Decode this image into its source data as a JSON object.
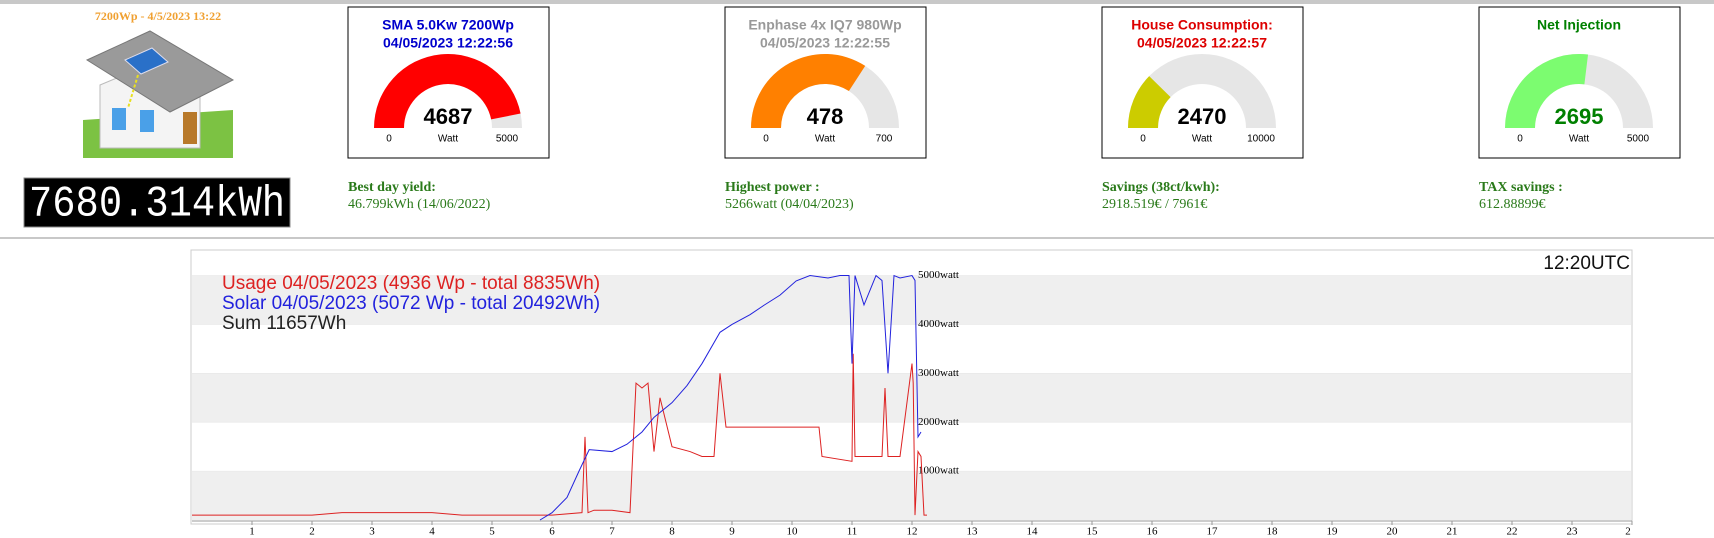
{
  "header": {
    "summary": "7200Wp - 4/5/2023 13:22",
    "counter": "7680.314kWh"
  },
  "gauges": [
    {
      "title": "SMA 5.0Kw 7200Wp",
      "time": "04/05/2023 12:22:56",
      "value": 4687,
      "min": 0,
      "max": 5000,
      "unit": "Watt",
      "color": "#ff0000",
      "title_color": "#0000cc",
      "value_color": "#000000"
    },
    {
      "title": "Enphase 4x IQ7 980Wp",
      "time": "04/05/2023 12:22:55",
      "value": 478,
      "min": 0,
      "max": 700,
      "unit": "Watt",
      "color": "#ff8000",
      "title_color": "#999999",
      "value_color": "#000000"
    },
    {
      "title": "House Consumption:",
      "time": "04/05/2023 12:22:57",
      "value": 2470,
      "min": 0,
      "max": 10000,
      "unit": "Watt",
      "color": "#cccc00",
      "title_color": "#dd0000",
      "value_color": "#000000"
    },
    {
      "title": "Net Injection",
      "value": 2695,
      "min": 0,
      "max": 5000,
      "unit": "Watt",
      "color": "#7cfc70",
      "title_color": "#008000",
      "value_color": "#008000"
    }
  ],
  "stats": [
    {
      "label": "Best day yield:",
      "value": "46.799kWh (14/06/2022)"
    },
    {
      "label": "Highest power :",
      "value": "5266watt (04/04/2023)"
    },
    {
      "label": "Savings (38ct/kwh):",
      "value": "2918.519€ / 7961€"
    },
    {
      "label": "TAX savings :",
      "value": "612.88899€"
    }
  ],
  "chart": {
    "type": "line",
    "corner_label": "12:20UTC",
    "sum_label": "Sum 11657Wh",
    "xlim": [
      0,
      24
    ],
    "ylim": [
      0,
      5400
    ],
    "xticks": [
      1,
      2,
      3,
      4,
      5,
      6,
      7,
      8,
      9,
      10,
      11,
      12,
      13,
      14,
      15,
      16,
      17,
      18,
      19,
      20,
      21,
      22,
      23,
      {
        "value": 24,
        "label": "2"
      }
    ],
    "yticks": [
      {
        "value": 1000,
        "label": "1000watt"
      },
      {
        "value": 2000,
        "label": "2000watt"
      },
      {
        "value": 3000,
        "label": "3000watt"
      },
      {
        "value": 4000,
        "label": "4000watt"
      },
      {
        "value": 5000,
        "label": "5000watt"
      }
    ],
    "series": [
      {
        "name": "Usage 04/05/2023 (4936 Wp - total 8835Wh)",
        "color": "#dd2222",
        "x": [
          0,
          1,
          2,
          2.5,
          3,
          4,
          4.5,
          5,
          5.5,
          6,
          6.5,
          6.55,
          6.6,
          6.7,
          7,
          7.3,
          7.4,
          7.5,
          7.6,
          7.7,
          7.8,
          8,
          8.3,
          8.5,
          8.7,
          8.8,
          8.9,
          9,
          9.5,
          10,
          10.4,
          10.45,
          10.5,
          11,
          11.02,
          11.05,
          11.1,
          11.3,
          11.5,
          11.55,
          11.6,
          11.8,
          12,
          12.02,
          12.05,
          12.1,
          12.15,
          12.2,
          12.25
        ],
        "values": [
          100,
          100,
          100,
          150,
          150,
          150,
          100,
          100,
          100,
          100,
          150,
          1700,
          150,
          200,
          200,
          150,
          2800,
          2700,
          2800,
          1400,
          2500,
          1500,
          1400,
          1300,
          1300,
          3000,
          1900,
          1900,
          1900,
          1900,
          1900,
          1900,
          1300,
          1200,
          3400,
          1300,
          1300,
          1300,
          1300,
          2700,
          1300,
          1300,
          3200,
          2800,
          100,
          1400,
          1300,
          100,
          100
        ]
      },
      {
        "name": "Solar 04/05/2023 (5072 Wp - total 20492Wh)",
        "color": "#2222dd",
        "x": [
          5.8,
          6,
          6.25,
          6.45,
          6.62,
          7,
          7.25,
          7.5,
          7.7,
          8,
          8.25,
          8.5,
          8.8,
          9,
          9.3,
          9.53,
          9.8,
          10.07,
          10.3,
          10.6,
          10.8,
          10.95,
          11,
          11.05,
          11.2,
          11.4,
          11.5,
          11.6,
          11.7,
          11.8,
          12,
          12.05,
          12.1,
          12.15
        ],
        "values": [
          0,
          150,
          460,
          1000,
          1440,
          1400,
          1550,
          1800,
          2100,
          2400,
          2750,
          3200,
          3840,
          4000,
          4200,
          4390,
          4600,
          4890,
          5000,
          4950,
          5000,
          5000,
          3200,
          5000,
          4400,
          5000,
          4900,
          3000,
          5000,
          4950,
          5000,
          4900,
          1700,
          1800
        ]
      }
    ]
  }
}
